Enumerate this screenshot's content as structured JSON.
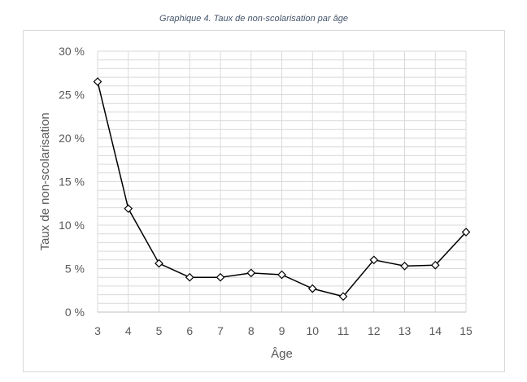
{
  "caption": "Graphique 4. Taux de non-scolarisation par âge",
  "chart_data": {
    "type": "line",
    "title": "",
    "xlabel": "Âge",
    "ylabel": "Taux de non-scolarisation",
    "x": [
      3,
      4,
      5,
      6,
      7,
      8,
      9,
      10,
      11,
      12,
      13,
      14,
      15
    ],
    "series": [
      {
        "values": [
          26.5,
          11.9,
          5.6,
          4.0,
          4.0,
          4.5,
          4.3,
          2.7,
          1.8,
          6.0,
          5.3,
          5.4,
          9.2
        ]
      }
    ],
    "ylim": [
      0,
      30
    ],
    "y_major_ticks": [
      0,
      5,
      10,
      15,
      20,
      25,
      30
    ],
    "y_tick_labels": [
      "0 %",
      "5 %",
      "10 %",
      "15 %",
      "20 %",
      "25 %",
      "30 %"
    ],
    "y_minor_step": 1,
    "grid": true,
    "marker": "diamond-open",
    "line_color": "#000000",
    "grid_color": "#d9d9d9"
  }
}
